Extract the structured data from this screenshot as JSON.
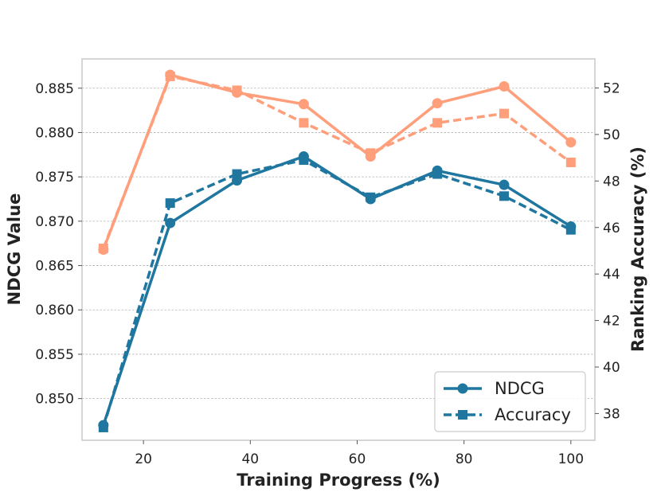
{
  "chart_data": {
    "type": "line",
    "title": "",
    "xlabel": "Training Progress (%)",
    "ylabel_left": "NDCG Value",
    "ylabel_right": "Ranking Accuracy (%)",
    "x": [
      12.5,
      25,
      37.5,
      50,
      62.5,
      75,
      87.5,
      100
    ],
    "xlim": [
      8.5,
      104.5
    ],
    "xticks": [
      20,
      40,
      60,
      80,
      100
    ],
    "ylim_left": [
      0.8453,
      0.8883
    ],
    "yticks_left": [
      0.85,
      0.855,
      0.86,
      0.865,
      0.87,
      0.875,
      0.88,
      0.885
    ],
    "ytick_labels_left": [
      "0.850",
      "0.855",
      "0.860",
      "0.865",
      "0.870",
      "0.875",
      "0.880",
      "0.885"
    ],
    "ylim_right": [
      36.85,
      53.25
    ],
    "yticks_right": [
      38,
      40,
      42,
      44,
      46,
      48,
      50,
      52
    ],
    "grid": true,
    "legend": {
      "position": "bottom-right",
      "entries": [
        "NDCG",
        "Accuracy"
      ]
    },
    "series": [
      {
        "name": "NDCG",
        "group": "A",
        "axis": "left",
        "style": "solid",
        "marker": "circle",
        "color": "#ff9e7a",
        "values": [
          0.8668,
          0.8865,
          0.8845,
          0.8832,
          0.8773,
          0.8833,
          0.8852,
          0.8789
        ]
      },
      {
        "name": "Accuracy",
        "group": "A",
        "axis": "right",
        "style": "dashed",
        "marker": "square",
        "color": "#ff9e7a",
        "values": [
          45.1,
          52.5,
          51.9,
          50.5,
          49.2,
          50.5,
          50.9,
          48.8
        ]
      },
      {
        "name": "NDCG",
        "group": "B",
        "axis": "left",
        "style": "solid",
        "marker": "circle",
        "color": "#1f77a0",
        "values": [
          0.847,
          0.8698,
          0.8746,
          0.8773,
          0.8725,
          0.8757,
          0.8741,
          0.8694
        ]
      },
      {
        "name": "Accuracy",
        "group": "B",
        "axis": "right",
        "style": "dashed",
        "marker": "square",
        "color": "#1f77a0",
        "values": [
          37.4,
          47.05,
          48.3,
          48.9,
          47.3,
          48.3,
          47.35,
          45.9
        ]
      }
    ]
  },
  "colors": {
    "axes": "#cccccc",
    "grid": "#b0b0b0",
    "text": "#222222"
  }
}
